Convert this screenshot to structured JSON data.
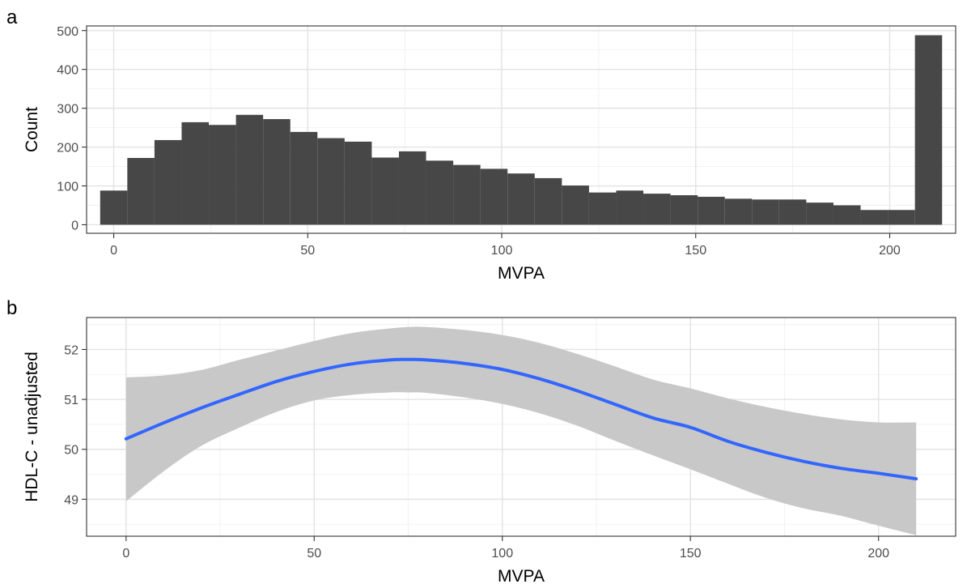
{
  "chart_data": [
    {
      "panel": "a",
      "type": "bar",
      "xlabel": "MVPA",
      "ylabel": "Count",
      "xlim": [
        -7,
        217
      ],
      "ylim": [
        -22,
        512
      ],
      "x_ticks": [
        0,
        50,
        100,
        150,
        200
      ],
      "y_ticks": [
        0,
        100,
        200,
        300,
        400,
        500
      ],
      "grid": true,
      "bar_color": "#474747",
      "bins": [
        {
          "from": -3.5,
          "to": 3.5,
          "count": 88
        },
        {
          "from": 3.5,
          "to": 10.5,
          "count": 172
        },
        {
          "from": 10.5,
          "to": 17.5,
          "count": 218
        },
        {
          "from": 17.5,
          "to": 24.5,
          "count": 264
        },
        {
          "from": 24.5,
          "to": 31.5,
          "count": 257
        },
        {
          "from": 31.5,
          "to": 38.5,
          "count": 283
        },
        {
          "from": 38.5,
          "to": 45.5,
          "count": 272
        },
        {
          "from": 45.5,
          "to": 52.5,
          "count": 239
        },
        {
          "from": 52.5,
          "to": 59.5,
          "count": 223
        },
        {
          "from": 59.5,
          "to": 66.5,
          "count": 214
        },
        {
          "from": 66.5,
          "to": 73.5,
          "count": 173
        },
        {
          "from": 73.5,
          "to": 80.5,
          "count": 189
        },
        {
          "from": 80.5,
          "to": 87.5,
          "count": 165
        },
        {
          "from": 87.5,
          "to": 94.5,
          "count": 154
        },
        {
          "from": 94.5,
          "to": 101.5,
          "count": 144
        },
        {
          "from": 101.5,
          "to": 108.5,
          "count": 132
        },
        {
          "from": 108.5,
          "to": 115.5,
          "count": 120
        },
        {
          "from": 115.5,
          "to": 122.5,
          "count": 101
        },
        {
          "from": 122.5,
          "to": 129.5,
          "count": 83
        },
        {
          "from": 129.5,
          "to": 136.5,
          "count": 88
        },
        {
          "from": 136.5,
          "to": 143.5,
          "count": 80
        },
        {
          "from": 143.5,
          "to": 150.5,
          "count": 76
        },
        {
          "from": 150.5,
          "to": 157.5,
          "count": 72
        },
        {
          "from": 157.5,
          "to": 164.5,
          "count": 67
        },
        {
          "from": 164.5,
          "to": 171.5,
          "count": 65
        },
        {
          "from": 171.5,
          "to": 178.5,
          "count": 65
        },
        {
          "from": 178.5,
          "to": 185.5,
          "count": 57
        },
        {
          "from": 185.5,
          "to": 192.5,
          "count": 50
        },
        {
          "from": 192.5,
          "to": 199.5,
          "count": 38
        },
        {
          "from": 199.5,
          "to": 206.5,
          "count": 38
        },
        {
          "from": 206.5,
          "to": 213.5,
          "count": 488
        }
      ]
    },
    {
      "panel": "b",
      "type": "line",
      "xlabel": "MVPA",
      "ylabel": "HDL-C - unadjusted",
      "xlim": [
        -10.5,
        220.5
      ],
      "ylim": [
        48.26,
        52.64
      ],
      "x_ticks": [
        0,
        50,
        100,
        150,
        200
      ],
      "y_ticks": [
        49,
        50,
        51,
        52
      ],
      "grid": true,
      "line_color": "#3366ff",
      "band_color": "#c8c8c8",
      "x": [
        0,
        10,
        20,
        30,
        40,
        50,
        60,
        70,
        75,
        80,
        90,
        100,
        110,
        120,
        130,
        140,
        150,
        160,
        170,
        180,
        190,
        200,
        210
      ],
      "fit": [
        50.21,
        50.53,
        50.83,
        51.1,
        51.36,
        51.56,
        51.71,
        51.79,
        51.8,
        51.79,
        51.72,
        51.6,
        51.41,
        51.17,
        50.9,
        50.63,
        50.44,
        50.16,
        49.94,
        49.76,
        49.62,
        49.52,
        49.41
      ],
      "lower": [
        48.96,
        49.56,
        50.07,
        50.43,
        50.75,
        50.98,
        51.09,
        51.14,
        51.14,
        51.13,
        51.04,
        50.91,
        50.72,
        50.47,
        50.17,
        49.88,
        49.6,
        49.31,
        49.03,
        48.82,
        48.67,
        48.47,
        48.28
      ],
      "upper": [
        51.44,
        51.48,
        51.59,
        51.79,
        51.98,
        52.17,
        52.33,
        52.42,
        52.45,
        52.45,
        52.39,
        52.29,
        52.13,
        51.91,
        51.66,
        51.4,
        51.22,
        51.02,
        50.85,
        50.71,
        50.6,
        50.54,
        50.54
      ]
    }
  ]
}
